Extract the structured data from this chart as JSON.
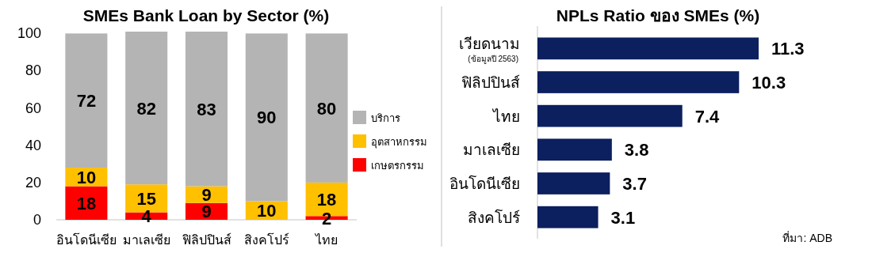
{
  "chart_data": [
    {
      "type": "bar",
      "title": "SMEs Bank Loan by Sector (%)",
      "categories": [
        "อินโดนีเซีย",
        "มาเลเซีย",
        "ฟิลิปปินส์",
        "สิงคโปร์",
        "ไทย"
      ],
      "stacked": true,
      "series": [
        {
          "name": "เกษตรกรรม",
          "color": "#ff0000",
          "values": [
            18,
            4,
            9,
            null,
            2
          ]
        },
        {
          "name": "อุตสาหกรรม",
          "color": "#ffc000",
          "values": [
            10,
            15,
            9,
            10,
            18
          ]
        },
        {
          "name": "บริการ",
          "color": "#b4b4b4",
          "values": [
            72,
            82,
            83,
            90,
            80
          ]
        }
      ],
      "ylim": [
        0,
        101
      ],
      "yticks": [
        0,
        20,
        40,
        60,
        80,
        100
      ],
      "grid": false,
      "legend": "right",
      "data_labels": true
    },
    {
      "type": "bar",
      "orientation": "horizontal",
      "title": "NPLs Ratio ของ SMEs (%)",
      "categories": [
        "เวียดนาม",
        "ฟิลิปปินส์",
        "ไทย",
        "มาเลเซีย",
        "อินโดนีเซีย",
        "สิงคโปร์"
      ],
      "values": [
        11.3,
        10.3,
        7.4,
        3.8,
        3.7,
        3.1
      ],
      "color": "#0c1f5e",
      "tick_labels": "y",
      "data_labels": true,
      "annotations": [
        "(ข้อมูลปี 2563)",
        "ที่มา: ADB"
      ]
    }
  ]
}
